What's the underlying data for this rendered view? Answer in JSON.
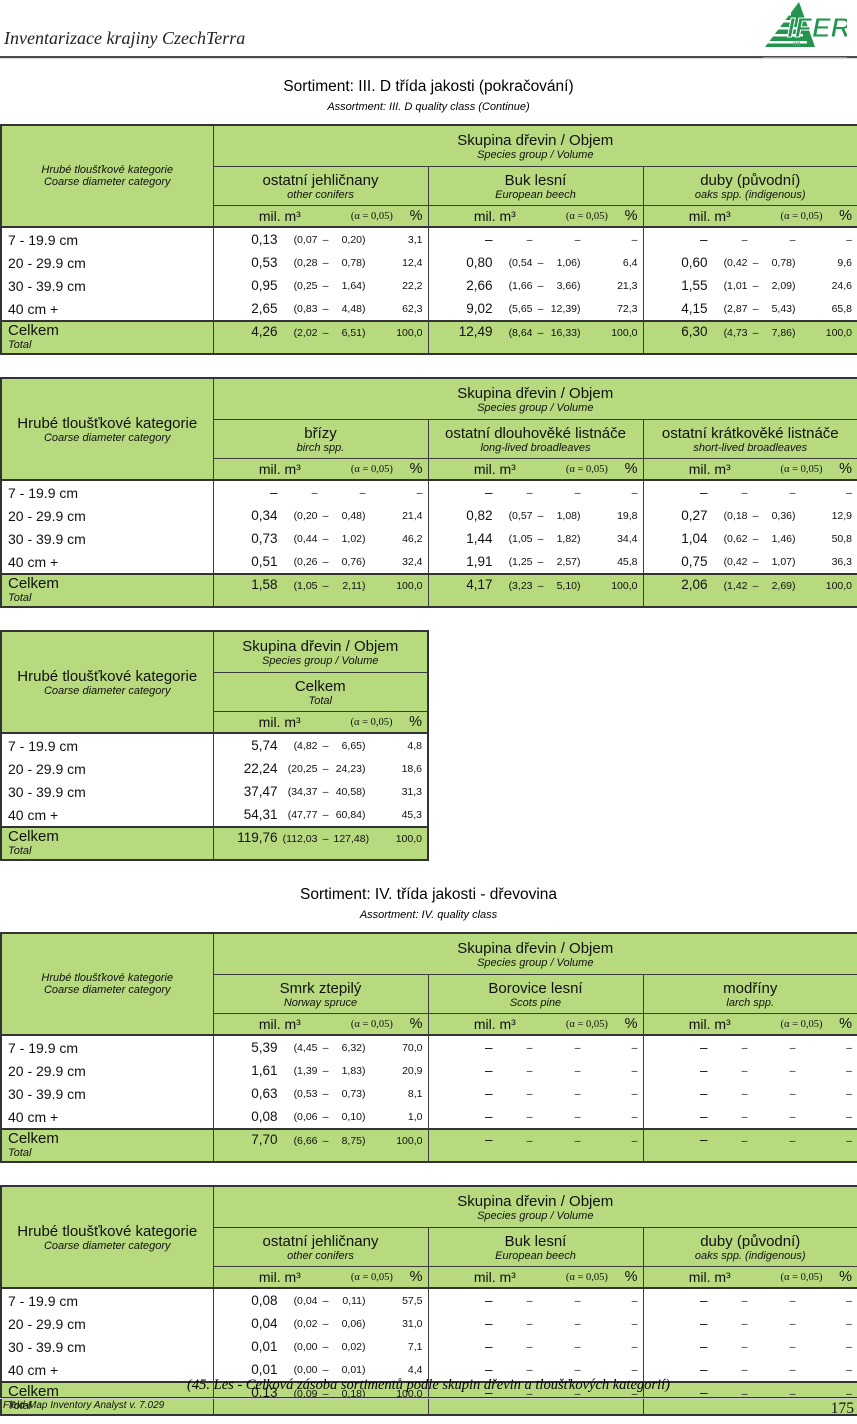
{
  "page": {
    "header_title": "Inventarizace krajiny CzechTerra",
    "logo_text": "IFER",
    "logo_sub": "ltd",
    "footer_caption": "(45. Les - Celková zásoba sortimentů podle skupin dřevin a tloušťkových kategorií)",
    "footer_app": "Field-Map Inventory Analyst v. 7.029",
    "page_number": "175"
  },
  "colors": {
    "header_green": "#b7da7e",
    "logo_green": "#23954f"
  },
  "sections": [
    {
      "title": "Sortiment: III. D třída jakosti (pokračování)",
      "subtitle": "Assortment: III. D quality class (Continue)"
    },
    {
      "title": "Sortiment: IV. třída jakosti - dřevovina",
      "subtitle": "Assortment: IV. quality class"
    }
  ],
  "labels": {
    "row_header_cs": "Hrubé tloušťkové kategorie",
    "row_header_en": "Coarse diameter category",
    "group_header_cs": "Skupina dřevin / Objem",
    "group_header_en": "Species group / Volume",
    "unit_mil": "mil. m³",
    "unit_alpha": "(α = 0,05)",
    "unit_pct": "%"
  },
  "row_labels": [
    "7 - 19.9 cm",
    "20 - 29.9 cm",
    "30 - 39.9 cm",
    "40 cm +"
  ],
  "total_label": {
    "cs": "Celkem",
    "en": "Total"
  },
  "tables": [
    {
      "left_header": "small",
      "groups": [
        {
          "cs": "ostatní jehličnany",
          "en": "other conifers",
          "rows": [
            {
              "v": "0,13",
              "lo": "(0,07",
              "sep": "–",
              "hi": "0,20)",
              "p": "3,1"
            },
            {
              "v": "0,53",
              "lo": "(0,28",
              "sep": "–",
              "hi": "0,78)",
              "p": "12,4"
            },
            {
              "v": "0,95",
              "lo": "(0,25",
              "sep": "–",
              "hi": "1,64)",
              "p": "22,2"
            },
            {
              "v": "2,65",
              "lo": "(0,83",
              "sep": "–",
              "hi": "4,48)",
              "p": "62,3"
            }
          ],
          "total": {
            "v": "4,26",
            "lo": "(2,02",
            "sep": "–",
            "hi": "6,51)",
            "p": "100,0"
          }
        },
        {
          "cs": "Buk lesní",
          "en": "European beech",
          "rows": [
            {
              "v": "–",
              "lo": "–",
              "sep": "",
              "hi": "–",
              "p": "–"
            },
            {
              "v": "0,80",
              "lo": "(0,54",
              "sep": "–",
              "hi": "1,06)",
              "p": "6,4"
            },
            {
              "v": "2,66",
              "lo": "(1,66",
              "sep": "–",
              "hi": "3,66)",
              "p": "21,3"
            },
            {
              "v": "9,02",
              "lo": "(5,65",
              "sep": "–",
              "hi": "12,39)",
              "p": "72,3"
            }
          ],
          "total": {
            "v": "12,49",
            "lo": "(8,64",
            "sep": "–",
            "hi": "16,33)",
            "p": "100,0"
          }
        },
        {
          "cs": "duby (původní)",
          "en": "oaks spp. (indigenous)",
          "rows": [
            {
              "v": "–",
              "lo": "–",
              "sep": "",
              "hi": "–",
              "p": "–"
            },
            {
              "v": "0,60",
              "lo": "(0,42",
              "sep": "–",
              "hi": "0,78)",
              "p": "9,6"
            },
            {
              "v": "1,55",
              "lo": "(1,01",
              "sep": "–",
              "hi": "2,09)",
              "p": "24,6"
            },
            {
              "v": "4,15",
              "lo": "(2,87",
              "sep": "–",
              "hi": "5,43)",
              "p": "65,8"
            }
          ],
          "total": {
            "v": "6,30",
            "lo": "(4,73",
            "sep": "–",
            "hi": "7,86)",
            "p": "100,0"
          }
        }
      ]
    },
    {
      "left_header": "large",
      "groups": [
        {
          "cs": "břízy",
          "en": "birch spp.",
          "rows": [
            {
              "v": "–",
              "lo": "–",
              "sep": "",
              "hi": "–",
              "p": "–"
            },
            {
              "v": "0,34",
              "lo": "(0,20",
              "sep": "–",
              "hi": "0,48)",
              "p": "21,4"
            },
            {
              "v": "0,73",
              "lo": "(0,44",
              "sep": "–",
              "hi": "1,02)",
              "p": "46,2"
            },
            {
              "v": "0,51",
              "lo": "(0,26",
              "sep": "–",
              "hi": "0,76)",
              "p": "32,4"
            }
          ],
          "total": {
            "v": "1,58",
            "lo": "(1,05",
            "sep": "–",
            "hi": "2,11)",
            "p": "100,0"
          }
        },
        {
          "cs": "ostatní dlouhověké listnáče",
          "en": "long-lived broadleaves",
          "rows": [
            {
              "v": "–",
              "lo": "–",
              "sep": "",
              "hi": "–",
              "p": "–"
            },
            {
              "v": "0,82",
              "lo": "(0,57",
              "sep": "–",
              "hi": "1,08)",
              "p": "19,8"
            },
            {
              "v": "1,44",
              "lo": "(1,05",
              "sep": "–",
              "hi": "1,82)",
              "p": "34,4"
            },
            {
              "v": "1,91",
              "lo": "(1,25",
              "sep": "–",
              "hi": "2,57)",
              "p": "45,8"
            }
          ],
          "total": {
            "v": "4,17",
            "lo": "(3,23",
            "sep": "–",
            "hi": "5,10)",
            "p": "100,0"
          }
        },
        {
          "cs": "ostatní krátkověké listnáče",
          "en": "short-lived broadleaves",
          "rows": [
            {
              "v": "–",
              "lo": "–",
              "sep": "",
              "hi": "–",
              "p": "–"
            },
            {
              "v": "0,27",
              "lo": "(0,18",
              "sep": "–",
              "hi": "0,36)",
              "p": "12,9"
            },
            {
              "v": "1,04",
              "lo": "(0,62",
              "sep": "–",
              "hi": "1,46)",
              "p": "50,8"
            },
            {
              "v": "0,75",
              "lo": "(0,42",
              "sep": "–",
              "hi": "1,07)",
              "p": "36,3"
            }
          ],
          "total": {
            "v": "2,06",
            "lo": "(1,42",
            "sep": "–",
            "hi": "2,69)",
            "p": "100,0"
          }
        }
      ]
    },
    {
      "left_header": "large",
      "groups": [
        {
          "cs": "Celkem",
          "en": "Total",
          "rows": [
            {
              "v": "5,74",
              "lo": "(4,82",
              "sep": "–",
              "hi": "6,65)",
              "p": "4,8"
            },
            {
              "v": "22,24",
              "lo": "(20,25",
              "sep": "–",
              "hi": "24,23)",
              "p": "18,6"
            },
            {
              "v": "37,47",
              "lo": "(34,37",
              "sep": "–",
              "hi": "40,58)",
              "p": "31,3"
            },
            {
              "v": "54,31",
              "lo": "(47,77",
              "sep": "–",
              "hi": "60,84)",
              "p": "45,3"
            }
          ],
          "total": {
            "v": "119,76",
            "lo": "(112,03",
            "sep": "–",
            "hi": "127,48)",
            "p": "100,0"
          }
        }
      ]
    },
    {
      "left_header": "small",
      "groups": [
        {
          "cs": "Smrk ztepilý",
          "en": "Norway spruce",
          "rows": [
            {
              "v": "5,39",
              "lo": "(4,45",
              "sep": "–",
              "hi": "6,32)",
              "p": "70,0"
            },
            {
              "v": "1,61",
              "lo": "(1,39",
              "sep": "–",
              "hi": "1,83)",
              "p": "20,9"
            },
            {
              "v": "0,63",
              "lo": "(0,53",
              "sep": "–",
              "hi": "0,73)",
              "p": "8,1"
            },
            {
              "v": "0,08",
              "lo": "(0,06",
              "sep": "–",
              "hi": "0,10)",
              "p": "1,0"
            }
          ],
          "total": {
            "v": "7,70",
            "lo": "(6,66",
            "sep": "–",
            "hi": "8,75)",
            "p": "100,0"
          }
        },
        {
          "cs": "Borovice lesní",
          "en": "Scots pine",
          "rows": [
            {
              "v": "–",
              "lo": "–",
              "sep": "",
              "hi": "–",
              "p": "–"
            },
            {
              "v": "–",
              "lo": "–",
              "sep": "",
              "hi": "–",
              "p": "–"
            },
            {
              "v": "–",
              "lo": "–",
              "sep": "",
              "hi": "–",
              "p": "–"
            },
            {
              "v": "–",
              "lo": "–",
              "sep": "",
              "hi": "–",
              "p": "–"
            }
          ],
          "total": {
            "v": "–",
            "lo": "–",
            "sep": "",
            "hi": "–",
            "p": "–"
          }
        },
        {
          "cs": "modříny",
          "en": "larch spp.",
          "rows": [
            {
              "v": "–",
              "lo": "–",
              "sep": "",
              "hi": "–",
              "p": "–"
            },
            {
              "v": "–",
              "lo": "–",
              "sep": "",
              "hi": "–",
              "p": "–"
            },
            {
              "v": "–",
              "lo": "–",
              "sep": "",
              "hi": "–",
              "p": "–"
            },
            {
              "v": "–",
              "lo": "–",
              "sep": "",
              "hi": "–",
              "p": "–"
            }
          ],
          "total": {
            "v": "–",
            "lo": "–",
            "sep": "",
            "hi": "–",
            "p": "–"
          }
        }
      ]
    },
    {
      "left_header": "large",
      "groups": [
        {
          "cs": "ostatní jehličnany",
          "en": "other conifers",
          "rows": [
            {
              "v": "0,08",
              "lo": "(0,04",
              "sep": "–",
              "hi": "0,11)",
              "p": "57,5"
            },
            {
              "v": "0,04",
              "lo": "(0,02",
              "sep": "–",
              "hi": "0,06)",
              "p": "31,0"
            },
            {
              "v": "0,01",
              "lo": "(0,00",
              "sep": "–",
              "hi": "0,02)",
              "p": "7,1"
            },
            {
              "v": "0,01",
              "lo": "(0,00",
              "sep": "–",
              "hi": "0,01)",
              "p": "4,4"
            }
          ],
          "total": {
            "v": "0,13",
            "lo": "(0,09",
            "sep": "–",
            "hi": "0,18)",
            "p": "100,0"
          }
        },
        {
          "cs": "Buk lesní",
          "en": "European beech",
          "rows": [
            {
              "v": "–",
              "lo": "–",
              "sep": "",
              "hi": "–",
              "p": "–"
            },
            {
              "v": "–",
              "lo": "–",
              "sep": "",
              "hi": "–",
              "p": "–"
            },
            {
              "v": "–",
              "lo": "–",
              "sep": "",
              "hi": "–",
              "p": "–"
            },
            {
              "v": "–",
              "lo": "–",
              "sep": "",
              "hi": "–",
              "p": "–"
            }
          ],
          "total": {
            "v": "–",
            "lo": "–",
            "sep": "",
            "hi": "–",
            "p": "–"
          }
        },
        {
          "cs": "duby (původní)",
          "en": "oaks spp. (indigenous)",
          "rows": [
            {
              "v": "–",
              "lo": "–",
              "sep": "",
              "hi": "–",
              "p": "–"
            },
            {
              "v": "–",
              "lo": "–",
              "sep": "",
              "hi": "–",
              "p": "–"
            },
            {
              "v": "–",
              "lo": "–",
              "sep": "",
              "hi": "–",
              "p": "–"
            },
            {
              "v": "–",
              "lo": "–",
              "sep": "",
              "hi": "–",
              "p": "–"
            }
          ],
          "total": {
            "v": "–",
            "lo": "–",
            "sep": "",
            "hi": "–",
            "p": "–"
          }
        }
      ]
    }
  ]
}
